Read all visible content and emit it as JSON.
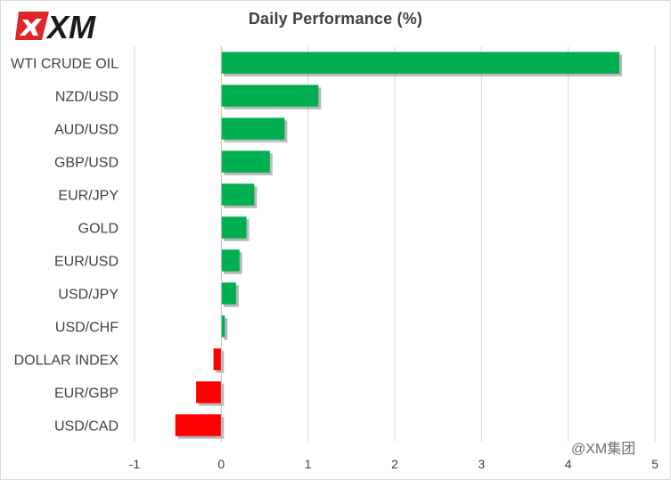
{
  "brand": {
    "logo_text": "XM"
  },
  "chart_data": {
    "type": "bar",
    "orientation": "horizontal",
    "title": "Daily Performance (%)",
    "xlabel": "",
    "ylabel": "",
    "categories": [
      "WTI CRUDE OIL",
      "NZD/USD",
      "AUD/USD",
      "GBP/USD",
      "EUR/JPY",
      "GOLD",
      "EUR/USD",
      "USD/JPY",
      "USD/CHF",
      "DOLLAR INDEX",
      "EUR/GBP",
      "USD/CAD"
    ],
    "values": [
      4.59,
      1.12,
      0.73,
      0.56,
      0.38,
      0.29,
      0.21,
      0.17,
      0.04,
      -0.09,
      -0.29,
      -0.53
    ],
    "xlim": [
      -1,
      5
    ],
    "xticks": [
      "-1",
      "0",
      "1",
      "2",
      "3",
      "4",
      "5"
    ],
    "grid": true,
    "legend": "none",
    "colors": {
      "positive": "#00b050",
      "negative": "#ff0000",
      "grid": "#d9d9d9",
      "axis": "#bfbfbf"
    }
  },
  "watermark": "@XM集团"
}
